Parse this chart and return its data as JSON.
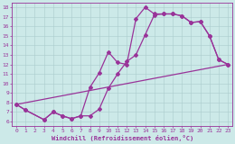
{
  "xlabel": "Windchill (Refroidissement éolien,°C)",
  "xlim": [
    -0.5,
    23.5
  ],
  "ylim": [
    5.5,
    18.5
  ],
  "xticks": [
    0,
    1,
    2,
    3,
    4,
    5,
    6,
    7,
    8,
    9,
    10,
    11,
    12,
    13,
    14,
    15,
    16,
    17,
    18,
    19,
    20,
    21,
    22,
    23
  ],
  "yticks": [
    6,
    7,
    8,
    9,
    10,
    11,
    12,
    13,
    14,
    15,
    16,
    17,
    18
  ],
  "bg_color": "#cce9e8",
  "grid_color": "#aacccc",
  "line_color": "#993399",
  "line1_x": [
    0,
    1,
    3,
    4,
    5,
    6,
    7,
    8,
    9,
    10,
    11,
    12,
    13,
    14,
    15,
    16,
    17,
    18,
    19,
    20,
    21,
    22,
    23
  ],
  "line1_y": [
    7.8,
    7.2,
    6.2,
    7.0,
    6.6,
    6.3,
    6.6,
    9.6,
    11.1,
    13.3,
    12.2,
    12.0,
    16.8,
    18.0,
    17.3,
    17.3,
    17.3,
    17.1,
    16.4,
    16.5,
    15.0,
    12.5,
    12.0
  ],
  "line2_x": [
    0,
    1,
    3,
    4,
    5,
    6,
    7,
    8,
    9,
    10,
    11,
    12,
    13,
    14,
    15,
    16,
    17,
    18,
    19,
    20,
    21,
    22,
    23
  ],
  "line2_y": [
    7.8,
    7.2,
    6.2,
    7.0,
    6.6,
    6.3,
    6.6,
    6.6,
    7.3,
    9.5,
    11.0,
    12.3,
    13.0,
    15.1,
    17.2,
    17.3,
    17.3,
    17.1,
    16.4,
    16.5,
    15.0,
    12.5,
    12.0
  ],
  "line3_x": [
    0,
    23
  ],
  "line3_y": [
    7.8,
    12.0
  ],
  "markersize": 2.0,
  "linewidth": 0.9
}
